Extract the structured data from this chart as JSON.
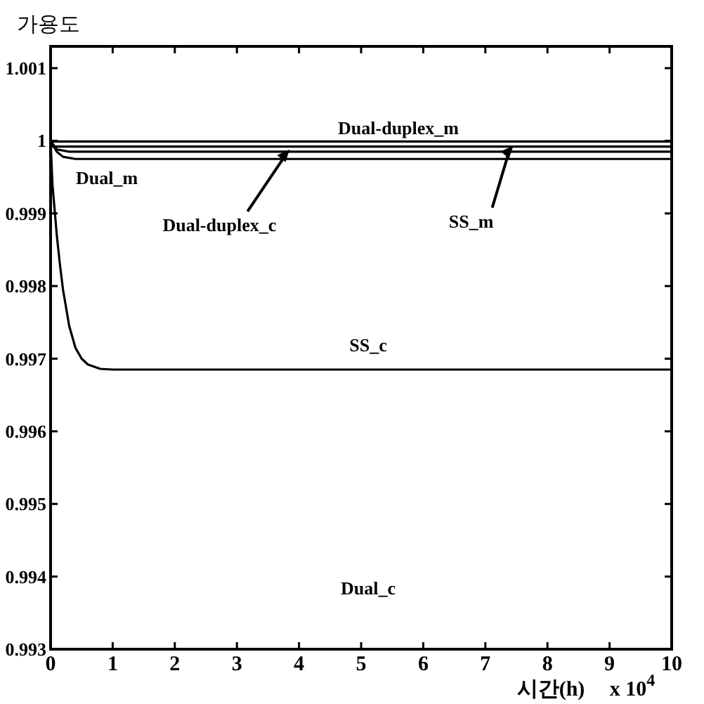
{
  "chart_data": {
    "type": "line",
    "ylabel": "가용도",
    "xlabel": "시간(h)",
    "xlim": [
      0,
      10
    ],
    "xticks": [
      0,
      1,
      2,
      3,
      4,
      5,
      6,
      7,
      8,
      9,
      10
    ],
    "ylim": [
      0.993,
      1.0013
    ],
    "yticks": [
      0.993,
      0.994,
      0.995,
      0.996,
      0.997,
      0.998,
      0.999,
      {
        "value": 1,
        "label": "1"
      },
      1.001
    ],
    "grid": false,
    "line_style": "solid",
    "marker": "none",
    "series": [
      {
        "color": "#000000",
        "x": [
          0,
          10
        ],
        "values": [
          0.99999,
          0.99999
        ]
      },
      {
        "color": "#000000",
        "x": [
          0,
          10
        ],
        "values": [
          0.99992,
          0.99992
        ]
      },
      {
        "color": "#000000",
        "x": [
          0,
          0.1,
          0.3,
          10
        ],
        "values": [
          1,
          0.99988,
          0.99985,
          0.99985
        ]
      },
      {
        "color": "#000000",
        "x": [
          0,
          0.1,
          0.2,
          0.4,
          10
        ],
        "values": [
          1,
          0.99985,
          0.99978,
          0.99975,
          0.99975
        ]
      },
      {
        "color": "#000000",
        "x": [
          0,
          0.03,
          0.07,
          0.1,
          0.15,
          0.2,
          0.3,
          0.4,
          0.5,
          0.6,
          0.8,
          1,
          10
        ],
        "values": [
          1,
          0.9994,
          0.999,
          0.9987,
          0.9983,
          0.99795,
          0.99745,
          0.99715,
          0.997,
          0.99692,
          0.99686,
          0.99685,
          0.99685
        ]
      }
    ],
    "annotations": [
      {
        "text": "Dual-duplex_m",
        "x": 5.6,
        "y": 1.00003
      },
      "Dual_m",
      {
        "text": "Dual-duplex_c",
        "x": 3.85,
        "y": 0.99988
      },
      {
        "text": "SS_m",
        "x": 7.45,
        "y": 0.99993
      },
      "SS_c",
      "Dual_c",
      "x 10$^{4}$"
    ]
  }
}
